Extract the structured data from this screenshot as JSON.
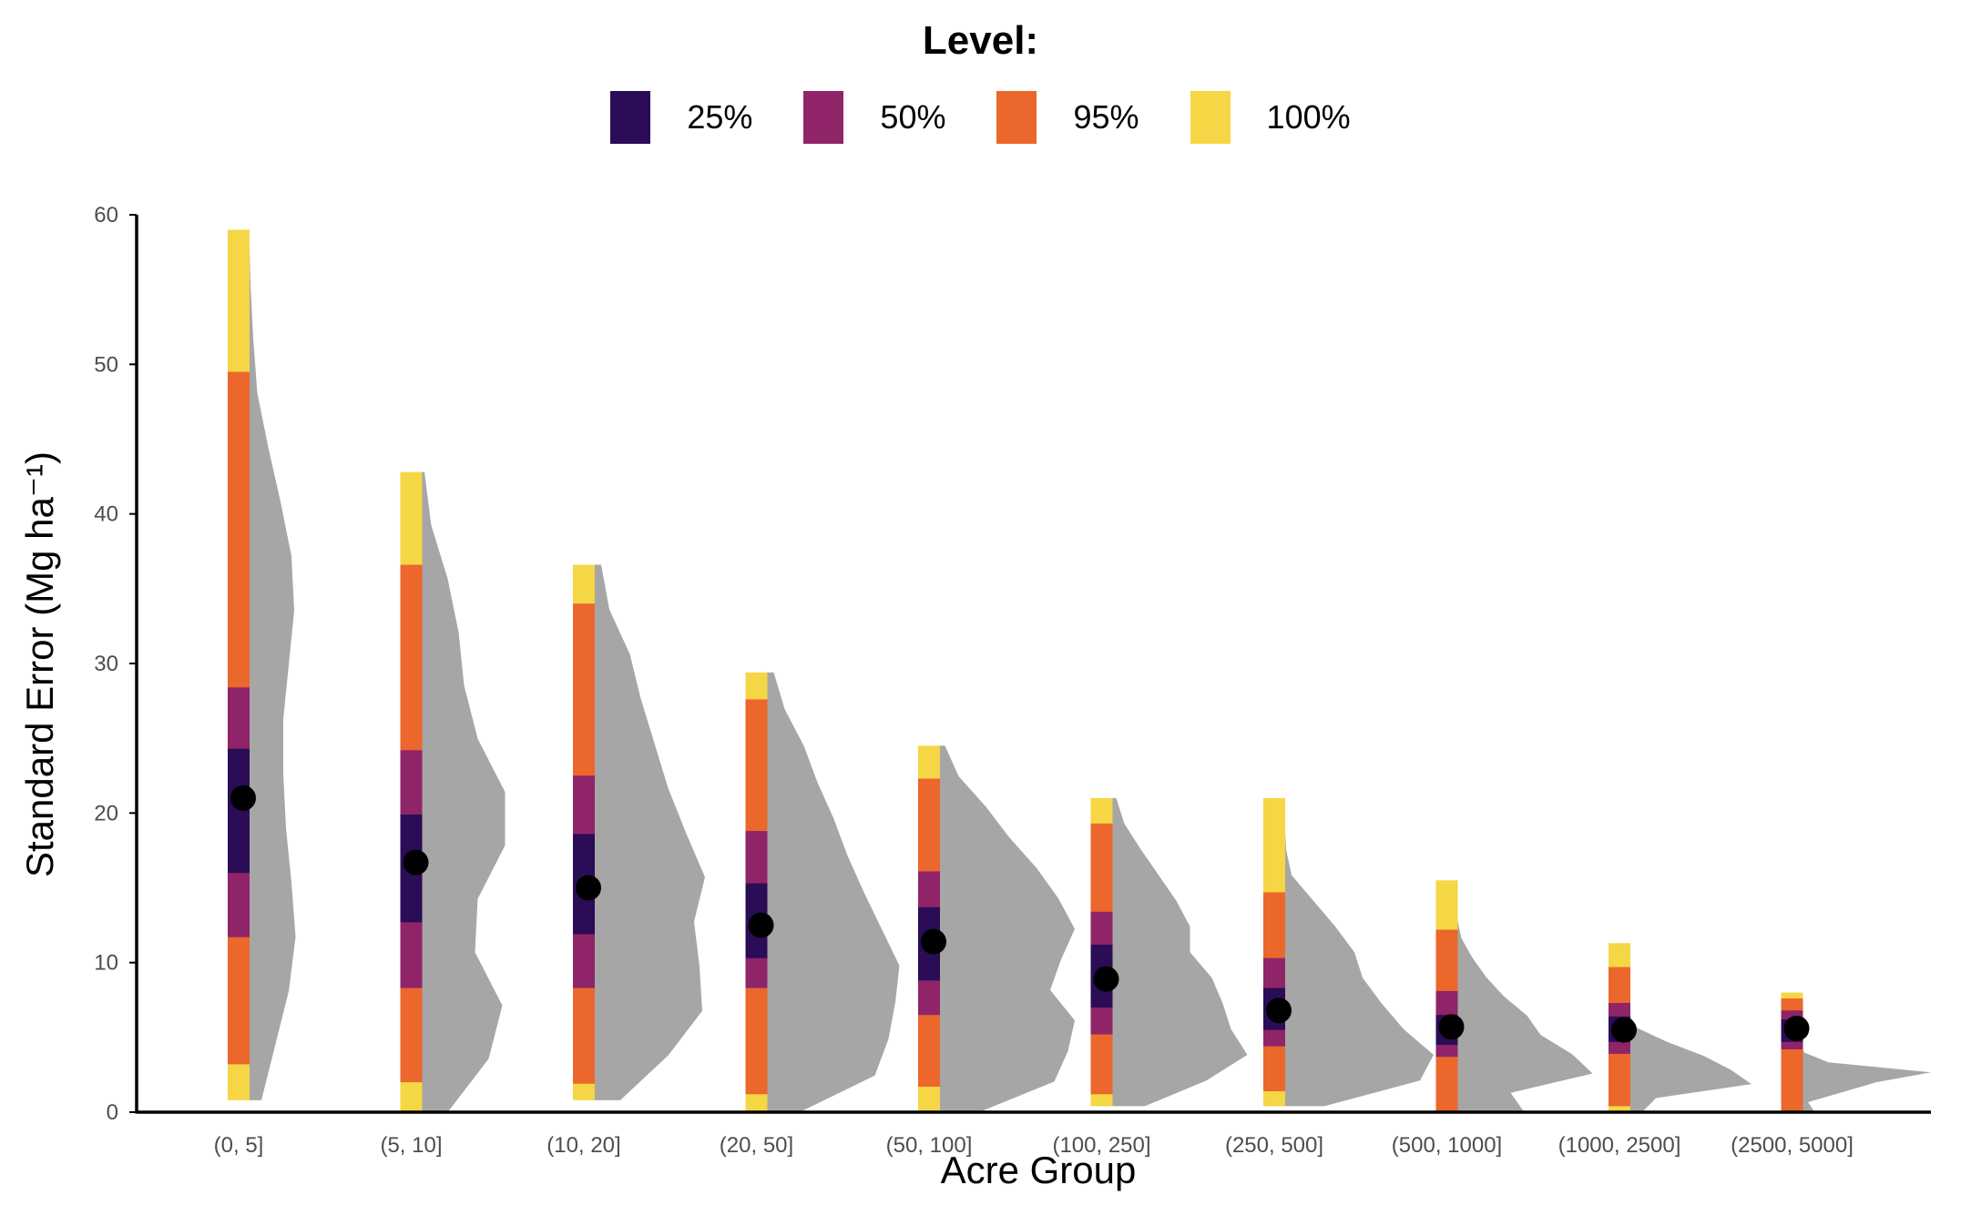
{
  "legend": {
    "title": "Level:",
    "items": [
      {
        "label": "25%",
        "color": "#2b0c56"
      },
      {
        "label": "50%",
        "color": "#8f2469"
      },
      {
        "label": "95%",
        "color": "#eb672c"
      },
      {
        "label": "100%",
        "color": "#f5d645"
      }
    ]
  },
  "chart_data": {
    "type": "violin",
    "title": "",
    "xlabel": "Acre Group",
    "ylabel": "Standard Error (Mg ha⁻¹)",
    "ylim": [
      0,
      60
    ],
    "yticks": [
      0,
      10,
      20,
      30,
      40,
      50,
      60
    ],
    "grid": false,
    "legend_position": "top",
    "density_color": "#a6a6a6",
    "point_color": "#000000",
    "categories": [
      "(0, 5]",
      "(5, 10]",
      "(10, 20]",
      "(20, 50]",
      "(50, 100]",
      "(100, 250]",
      "(250, 500]",
      "(500, 1000]",
      "(1000, 2500]",
      "(2500, 5000]"
    ],
    "groups": [
      {
        "category": "(0, 5]",
        "point": 21.0,
        "intervals": {
          "100": [
            0.8,
            59.0
          ],
          "95": [
            3.2,
            49.5
          ],
          "50": [
            11.7,
            28.4
          ],
          "25": [
            16.0,
            24.3
          ]
        },
        "density_width": [
          0.1,
          0.2,
          0.3,
          0.35,
          0.32,
          0.28,
          0.26,
          0.26,
          0.3,
          0.34,
          0.32,
          0.24,
          0.15,
          0.07,
          0.04,
          0.02,
          0.01
        ]
      },
      {
        "category": "(5, 10]",
        "point": 16.7,
        "intervals": {
          "100": [
            0.0,
            42.8
          ],
          "95": [
            2.0,
            36.6
          ],
          "50": [
            8.3,
            24.2
          ],
          "25": [
            12.7,
            19.9
          ]
        },
        "density_width": [
          0.2,
          0.5,
          0.6,
          0.4,
          0.42,
          0.62,
          0.62,
          0.42,
          0.32,
          0.28,
          0.2,
          0.08,
          0.03
        ]
      },
      {
        "category": "(10, 20]",
        "point": 15.0,
        "intervals": {
          "100": [
            0.8,
            36.6
          ],
          "95": [
            1.9,
            34.0
          ],
          "50": [
            8.3,
            22.5
          ],
          "25": [
            11.9,
            18.6
          ]
        },
        "density_width": [
          0.2,
          0.55,
          0.8,
          0.78,
          0.74,
          0.82,
          0.68,
          0.55,
          0.45,
          0.35,
          0.27,
          0.12,
          0.06
        ]
      },
      {
        "category": "(20, 50]",
        "point": 12.5,
        "intervals": {
          "100": [
            0.0,
            29.4
          ],
          "95": [
            1.2,
            27.6
          ],
          "50": [
            8.3,
            18.8
          ],
          "25": [
            10.3,
            15.3
          ]
        },
        "density_width": [
          0.25,
          0.8,
          0.9,
          0.95,
          0.98,
          0.85,
          0.72,
          0.6,
          0.5,
          0.38,
          0.28,
          0.14,
          0.06
        ]
      },
      {
        "category": "(50, 100]",
        "point": 11.4,
        "intervals": {
          "100": [
            0.0,
            24.5
          ],
          "95": [
            1.7,
            22.3
          ],
          "50": [
            6.5,
            16.1
          ],
          "25": [
            8.8,
            13.7
          ]
        },
        "density_width": [
          0.3,
          0.85,
          0.95,
          1.0,
          0.82,
          0.9,
          1.0,
          0.88,
          0.72,
          0.52,
          0.35,
          0.15,
          0.05
        ]
      },
      {
        "category": "(100, 250]",
        "point": 8.9,
        "intervals": {
          "100": [
            0.4,
            21.0
          ],
          "95": [
            1.2,
            19.3
          ],
          "50": [
            5.2,
            13.4
          ],
          "25": [
            7.0,
            11.2
          ]
        },
        "density_width": [
          0.25,
          0.7,
          1.0,
          0.88,
          0.82,
          0.74,
          0.58,
          0.58,
          0.48,
          0.35,
          0.22,
          0.1,
          0.04
        ]
      },
      {
        "category": "(250, 500]",
        "point": 6.8,
        "intervals": {
          "100": [
            0.4,
            21.0
          ],
          "95": [
            1.4,
            14.7
          ],
          "50": [
            4.4,
            10.3
          ],
          "25": [
            5.5,
            8.3
          ]
        },
        "density_width": [
          0.3,
          1.0,
          1.1,
          0.88,
          0.72,
          0.58,
          0.52,
          0.38,
          0.22,
          0.06,
          0.02,
          0.01,
          0.0
        ]
      },
      {
        "category": "(500, 1000]",
        "point": 5.7,
        "intervals": {
          "100": [
            0.0,
            15.5
          ],
          "95": [
            0.0,
            12.2
          ],
          "50": [
            3.7,
            8.1
          ],
          "25": [
            4.5,
            6.5
          ]
        },
        "density_width": [
          0.5,
          0.4,
          1.0,
          0.85,
          0.62,
          0.52,
          0.35,
          0.22,
          0.12,
          0.04,
          0.01,
          0.0,
          0.0
        ]
      },
      {
        "category": "(1000, 2500]",
        "point": 5.5,
        "intervals": {
          "100": [
            0.0,
            11.3
          ],
          "95": [
            0.4,
            9.7
          ],
          "50": [
            3.9,
            7.3
          ],
          "25": [
            4.7,
            6.4
          ]
        },
        "density_width": [
          0.1,
          0.2,
          0.9,
          0.75,
          0.55,
          0.28,
          0.06,
          0.0,
          0.0,
          0.0,
          0.0,
          0.0,
          0.0
        ]
      },
      {
        "category": "(2500, 5000]",
        "point": 5.6,
        "intervals": {
          "100": [
            0.0,
            8.0
          ],
          "95": [
            0.0,
            7.6
          ],
          "50": [
            4.2,
            6.8
          ],
          "25": [
            4.7,
            6.2
          ]
        },
        "density_width": [
          0.1,
          0.05,
          0.3,
          0.55,
          0.95,
          0.2,
          0.02,
          0.0,
          0.0,
          0.0,
          0.0,
          0.0,
          0.0
        ]
      }
    ]
  }
}
